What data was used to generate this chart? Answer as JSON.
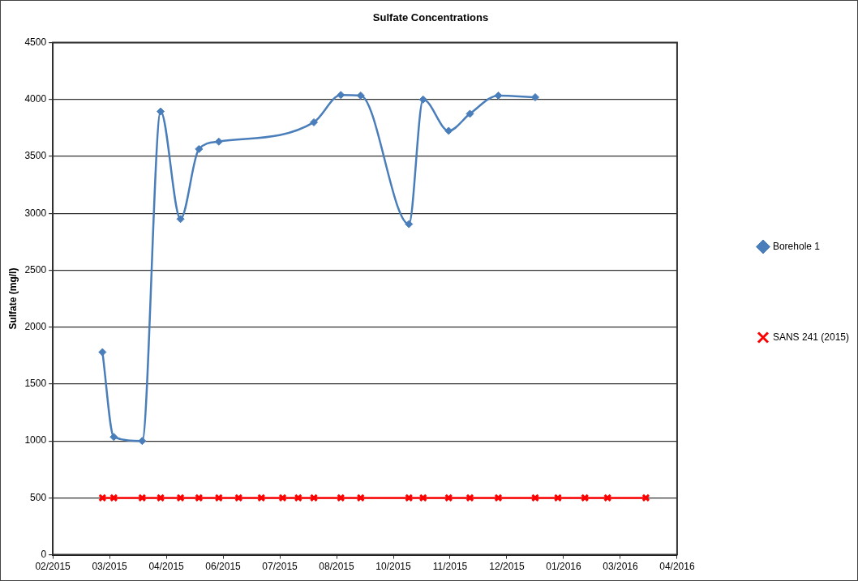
{
  "chart_data": {
    "type": "line",
    "title": "Sulfate Concentrations",
    "ylabel": "Sulfate (mg/l)",
    "xlim": [
      "2015-02-04",
      "2016-04-19"
    ],
    "xticks": [
      {
        "value": "2015-02-04",
        "label": "02/2015"
      },
      {
        "value": "2015-03-16",
        "label": "03/2015"
      },
      {
        "value": "2015-04-25",
        "label": "04/2015"
      },
      {
        "value": "2015-06-04",
        "label": "06/2015"
      },
      {
        "value": "2015-07-14",
        "label": "07/2015"
      },
      {
        "value": "2015-08-23",
        "label": "08/2015"
      },
      {
        "value": "2015-10-02",
        "label": "10/2015"
      },
      {
        "value": "2015-11-11",
        "label": "11/2015"
      },
      {
        "value": "2015-12-21",
        "label": "12/2015"
      },
      {
        "value": "2016-01-30",
        "label": "01/2016"
      },
      {
        "value": "2016-03-10",
        "label": "03/2016"
      },
      {
        "value": "2016-04-19",
        "label": "04/2016"
      }
    ],
    "ylim": [
      0,
      4500
    ],
    "yticks": [
      0,
      500,
      1000,
      1500,
      2000,
      2500,
      3000,
      3500,
      4000,
      4500
    ],
    "grid": "y",
    "legend": "right",
    "series": [
      {
        "name": "Borehole 1",
        "color": "#4a7ebb",
        "marker": "diamond",
        "line_style": "solid",
        "x": [
          "2015-03-11",
          "2015-03-19",
          "2015-04-08",
          "2015-04-21",
          "2015-05-05",
          "2015-05-18",
          "2015-06-01",
          "2015-08-07",
          "2015-08-26",
          "2015-09-09",
          "2015-10-13",
          "2015-10-23",
          "2015-11-10",
          "2015-11-25",
          "2015-12-15",
          "2016-01-10"
        ],
        "values": [
          1780,
          1035,
          1000,
          3895,
          2950,
          3565,
          3630,
          3800,
          4040,
          4035,
          2905,
          4000,
          3725,
          3875,
          4035,
          4020
        ]
      },
      {
        "name": "SANS 241 (2015)",
        "color": "#ff0000",
        "marker": "cross",
        "line_style": "solid",
        "x": [
          "2015-03-11",
          "2015-03-19",
          "2015-04-08",
          "2015-04-21",
          "2015-05-05",
          "2015-05-18",
          "2015-06-01",
          "2015-06-15",
          "2015-07-01",
          "2015-07-16",
          "2015-07-27",
          "2015-08-07",
          "2015-08-26",
          "2015-09-09",
          "2015-10-13",
          "2015-10-23",
          "2015-11-10",
          "2015-11-25",
          "2015-12-15",
          "2016-01-10",
          "2016-01-26",
          "2016-02-14",
          "2016-03-01",
          "2016-03-28"
        ],
        "values": [
          500,
          500,
          500,
          500,
          500,
          500,
          500,
          500,
          500,
          500,
          500,
          500,
          500,
          500,
          500,
          500,
          500,
          500,
          500,
          500,
          500,
          500,
          500,
          500
        ]
      }
    ]
  }
}
